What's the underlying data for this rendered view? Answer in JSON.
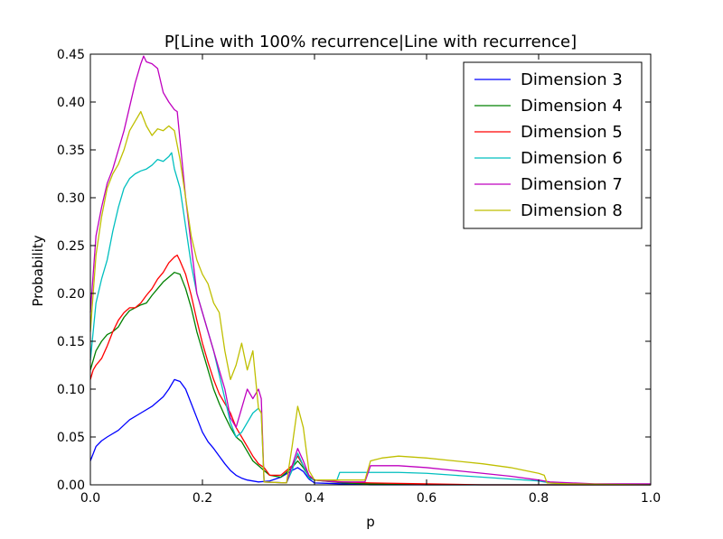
{
  "chart_data": {
    "type": "line",
    "title": "P[Line with 100% recurrence|Line with recurrence]",
    "xlabel": "p",
    "ylabel": "Probability",
    "xlim": [
      0.0,
      1.0
    ],
    "ylim": [
      0.0,
      0.45
    ],
    "xticks": [
      "0.0",
      "0.2",
      "0.4",
      "0.6",
      "0.8",
      "1.0"
    ],
    "yticks": [
      "0.00",
      "0.05",
      "0.10",
      "0.15",
      "0.20",
      "0.25",
      "0.30",
      "0.35",
      "0.40",
      "0.45"
    ],
    "grid": false,
    "legend_position": "top-right",
    "series": [
      {
        "name": "Dimension 3",
        "color": "#0000ff",
        "points": [
          [
            0.0,
            0.025
          ],
          [
            0.01,
            0.04
          ],
          [
            0.02,
            0.046
          ],
          [
            0.03,
            0.05
          ],
          [
            0.05,
            0.057
          ],
          [
            0.07,
            0.068
          ],
          [
            0.09,
            0.075
          ],
          [
            0.11,
            0.082
          ],
          [
            0.13,
            0.092
          ],
          [
            0.14,
            0.1
          ],
          [
            0.15,
            0.11
          ],
          [
            0.16,
            0.108
          ],
          [
            0.17,
            0.1
          ],
          [
            0.18,
            0.085
          ],
          [
            0.19,
            0.07
          ],
          [
            0.2,
            0.055
          ],
          [
            0.21,
            0.045
          ],
          [
            0.22,
            0.038
          ],
          [
            0.23,
            0.03
          ],
          [
            0.24,
            0.022
          ],
          [
            0.25,
            0.015
          ],
          [
            0.26,
            0.01
          ],
          [
            0.27,
            0.007
          ],
          [
            0.28,
            0.005
          ],
          [
            0.3,
            0.003
          ],
          [
            0.32,
            0.004
          ],
          [
            0.34,
            0.008
          ],
          [
            0.36,
            0.015
          ],
          [
            0.37,
            0.018
          ],
          [
            0.38,
            0.014
          ],
          [
            0.39,
            0.006
          ],
          [
            0.4,
            0.002
          ],
          [
            0.45,
            0.001
          ],
          [
            0.5,
            0.0
          ],
          [
            0.6,
            0.0
          ],
          [
            0.7,
            0.0
          ],
          [
            0.8,
            0.0
          ],
          [
            0.9,
            0.0
          ],
          [
            1.0,
            0.0
          ]
        ]
      },
      {
        "name": "Dimension 4",
        "color": "#008000",
        "points": [
          [
            0.0,
            0.12
          ],
          [
            0.005,
            0.13
          ],
          [
            0.01,
            0.14
          ],
          [
            0.02,
            0.15
          ],
          [
            0.03,
            0.157
          ],
          [
            0.04,
            0.16
          ],
          [
            0.05,
            0.165
          ],
          [
            0.06,
            0.175
          ],
          [
            0.07,
            0.182
          ],
          [
            0.08,
            0.185
          ],
          [
            0.09,
            0.188
          ],
          [
            0.1,
            0.19
          ],
          [
            0.11,
            0.198
          ],
          [
            0.12,
            0.205
          ],
          [
            0.13,
            0.212
          ],
          [
            0.14,
            0.217
          ],
          [
            0.15,
            0.222
          ],
          [
            0.16,
            0.22
          ],
          [
            0.17,
            0.205
          ],
          [
            0.18,
            0.185
          ],
          [
            0.19,
            0.16
          ],
          [
            0.2,
            0.14
          ],
          [
            0.21,
            0.12
          ],
          [
            0.22,
            0.1
          ],
          [
            0.23,
            0.085
          ],
          [
            0.24,
            0.072
          ],
          [
            0.25,
            0.06
          ],
          [
            0.26,
            0.05
          ],
          [
            0.27,
            0.045
          ],
          [
            0.28,
            0.035
          ],
          [
            0.29,
            0.025
          ],
          [
            0.3,
            0.02
          ],
          [
            0.31,
            0.015
          ],
          [
            0.32,
            0.01
          ],
          [
            0.34,
            0.008
          ],
          [
            0.36,
            0.018
          ],
          [
            0.37,
            0.025
          ],
          [
            0.38,
            0.018
          ],
          [
            0.39,
            0.008
          ],
          [
            0.4,
            0.005
          ],
          [
            0.45,
            0.002
          ],
          [
            0.5,
            0.001
          ],
          [
            0.6,
            0.0
          ],
          [
            0.7,
            0.0
          ],
          [
            0.8,
            0.0
          ],
          [
            1.0,
            0.0
          ]
        ]
      },
      {
        "name": "Dimension 5",
        "color": "#ff0000",
        "points": [
          [
            0.0,
            0.11
          ],
          [
            0.005,
            0.12
          ],
          [
            0.01,
            0.125
          ],
          [
            0.02,
            0.132
          ],
          [
            0.03,
            0.145
          ],
          [
            0.04,
            0.16
          ],
          [
            0.05,
            0.172
          ],
          [
            0.06,
            0.18
          ],
          [
            0.07,
            0.185
          ],
          [
            0.08,
            0.185
          ],
          [
            0.09,
            0.19
          ],
          [
            0.1,
            0.198
          ],
          [
            0.11,
            0.205
          ],
          [
            0.12,
            0.215
          ],
          [
            0.13,
            0.222
          ],
          [
            0.14,
            0.232
          ],
          [
            0.15,
            0.238
          ],
          [
            0.155,
            0.24
          ],
          [
            0.16,
            0.234
          ],
          [
            0.17,
            0.22
          ],
          [
            0.18,
            0.198
          ],
          [
            0.19,
            0.172
          ],
          [
            0.2,
            0.148
          ],
          [
            0.21,
            0.128
          ],
          [
            0.22,
            0.11
          ],
          [
            0.23,
            0.095
          ],
          [
            0.24,
            0.085
          ],
          [
            0.25,
            0.075
          ],
          [
            0.26,
            0.06
          ],
          [
            0.27,
            0.05
          ],
          [
            0.28,
            0.04
          ],
          [
            0.29,
            0.03
          ],
          [
            0.3,
            0.022
          ],
          [
            0.31,
            0.018
          ],
          [
            0.32,
            0.01
          ],
          [
            0.34,
            0.01
          ],
          [
            0.36,
            0.02
          ],
          [
            0.37,
            0.03
          ],
          [
            0.38,
            0.02
          ],
          [
            0.39,
            0.01
          ],
          [
            0.4,
            0.005
          ],
          [
            0.45,
            0.003
          ],
          [
            0.5,
            0.002
          ],
          [
            0.6,
            0.001
          ],
          [
            0.7,
            0.0
          ],
          [
            0.8,
            0.0
          ],
          [
            1.0,
            0.0
          ]
        ]
      },
      {
        "name": "Dimension 6",
        "color": "#00bfbf",
        "points": [
          [
            0.0,
            0.13
          ],
          [
            0.005,
            0.16
          ],
          [
            0.01,
            0.19
          ],
          [
            0.02,
            0.215
          ],
          [
            0.03,
            0.235
          ],
          [
            0.04,
            0.265
          ],
          [
            0.05,
            0.29
          ],
          [
            0.06,
            0.31
          ],
          [
            0.07,
            0.32
          ],
          [
            0.08,
            0.325
          ],
          [
            0.09,
            0.328
          ],
          [
            0.1,
            0.33
          ],
          [
            0.11,
            0.334
          ],
          [
            0.12,
            0.34
          ],
          [
            0.13,
            0.338
          ],
          [
            0.14,
            0.343
          ],
          [
            0.145,
            0.347
          ],
          [
            0.15,
            0.33
          ],
          [
            0.16,
            0.31
          ],
          [
            0.17,
            0.27
          ],
          [
            0.18,
            0.23
          ],
          [
            0.19,
            0.2
          ],
          [
            0.2,
            0.18
          ],
          [
            0.21,
            0.16
          ],
          [
            0.22,
            0.14
          ],
          [
            0.23,
            0.115
          ],
          [
            0.24,
            0.09
          ],
          [
            0.25,
            0.065
          ],
          [
            0.26,
            0.05
          ],
          [
            0.27,
            0.055
          ],
          [
            0.28,
            0.065
          ],
          [
            0.29,
            0.075
          ],
          [
            0.3,
            0.08
          ],
          [
            0.305,
            0.075
          ],
          [
            0.31,
            0.003
          ],
          [
            0.35,
            0.002
          ],
          [
            0.36,
            0.015
          ],
          [
            0.37,
            0.033
          ],
          [
            0.38,
            0.02
          ],
          [
            0.39,
            0.007
          ],
          [
            0.4,
            0.005
          ],
          [
            0.44,
            0.005
          ],
          [
            0.445,
            0.013
          ],
          [
            0.5,
            0.013
          ],
          [
            0.55,
            0.013
          ],
          [
            0.6,
            0.012
          ],
          [
            0.65,
            0.01
          ],
          [
            0.7,
            0.008
          ],
          [
            0.75,
            0.006
          ],
          [
            0.8,
            0.004
          ],
          [
            0.82,
            0.002
          ],
          [
            0.85,
            0.001
          ],
          [
            1.0,
            0.0
          ]
        ]
      },
      {
        "name": "Dimension 7",
        "color": "#bf00bf",
        "points": [
          [
            0.0,
            0.18
          ],
          [
            0.005,
            0.22
          ],
          [
            0.01,
            0.26
          ],
          [
            0.02,
            0.29
          ],
          [
            0.03,
            0.315
          ],
          [
            0.04,
            0.33
          ],
          [
            0.05,
            0.35
          ],
          [
            0.06,
            0.37
          ],
          [
            0.07,
            0.395
          ],
          [
            0.08,
            0.42
          ],
          [
            0.09,
            0.44
          ],
          [
            0.095,
            0.448
          ],
          [
            0.1,
            0.442
          ],
          [
            0.11,
            0.44
          ],
          [
            0.12,
            0.435
          ],
          [
            0.13,
            0.41
          ],
          [
            0.14,
            0.4
          ],
          [
            0.15,
            0.392
          ],
          [
            0.155,
            0.39
          ],
          [
            0.16,
            0.36
          ],
          [
            0.17,
            0.3
          ],
          [
            0.18,
            0.25
          ],
          [
            0.19,
            0.2
          ],
          [
            0.2,
            0.18
          ],
          [
            0.21,
            0.16
          ],
          [
            0.22,
            0.14
          ],
          [
            0.23,
            0.12
          ],
          [
            0.24,
            0.1
          ],
          [
            0.25,
            0.07
          ],
          [
            0.26,
            0.06
          ],
          [
            0.27,
            0.08
          ],
          [
            0.28,
            0.1
          ],
          [
            0.29,
            0.09
          ],
          [
            0.3,
            0.1
          ],
          [
            0.305,
            0.09
          ],
          [
            0.31,
            0.003
          ],
          [
            0.35,
            0.002
          ],
          [
            0.36,
            0.02
          ],
          [
            0.37,
            0.038
          ],
          [
            0.38,
            0.025
          ],
          [
            0.39,
            0.01
          ],
          [
            0.4,
            0.005
          ],
          [
            0.44,
            0.003
          ],
          [
            0.49,
            0.003
          ],
          [
            0.5,
            0.02
          ],
          [
            0.55,
            0.02
          ],
          [
            0.6,
            0.018
          ],
          [
            0.65,
            0.015
          ],
          [
            0.7,
            0.012
          ],
          [
            0.75,
            0.009
          ],
          [
            0.8,
            0.005
          ],
          [
            0.82,
            0.003
          ],
          [
            0.9,
            0.001
          ],
          [
            1.0,
            0.001
          ]
        ]
      },
      {
        "name": "Dimension 8",
        "color": "#bfbf00",
        "points": [
          [
            0.0,
            0.16
          ],
          [
            0.005,
            0.2
          ],
          [
            0.01,
            0.24
          ],
          [
            0.02,
            0.28
          ],
          [
            0.03,
            0.31
          ],
          [
            0.04,
            0.325
          ],
          [
            0.05,
            0.335
          ],
          [
            0.06,
            0.35
          ],
          [
            0.07,
            0.37
          ],
          [
            0.08,
            0.38
          ],
          [
            0.09,
            0.39
          ],
          [
            0.1,
            0.375
          ],
          [
            0.11,
            0.365
          ],
          [
            0.12,
            0.372
          ],
          [
            0.13,
            0.37
          ],
          [
            0.14,
            0.375
          ],
          [
            0.15,
            0.37
          ],
          [
            0.16,
            0.34
          ],
          [
            0.17,
            0.3
          ],
          [
            0.18,
            0.26
          ],
          [
            0.19,
            0.235
          ],
          [
            0.2,
            0.22
          ],
          [
            0.21,
            0.21
          ],
          [
            0.22,
            0.19
          ],
          [
            0.23,
            0.18
          ],
          [
            0.24,
            0.14
          ],
          [
            0.25,
            0.11
          ],
          [
            0.26,
            0.125
          ],
          [
            0.27,
            0.148
          ],
          [
            0.28,
            0.12
          ],
          [
            0.29,
            0.14
          ],
          [
            0.3,
            0.08
          ],
          [
            0.305,
            0.075
          ],
          [
            0.31,
            0.003
          ],
          [
            0.35,
            0.002
          ],
          [
            0.36,
            0.04
          ],
          [
            0.37,
            0.082
          ],
          [
            0.38,
            0.06
          ],
          [
            0.39,
            0.015
          ],
          [
            0.4,
            0.005
          ],
          [
            0.49,
            0.005
          ],
          [
            0.5,
            0.025
          ],
          [
            0.52,
            0.028
          ],
          [
            0.55,
            0.03
          ],
          [
            0.6,
            0.028
          ],
          [
            0.65,
            0.025
          ],
          [
            0.7,
            0.022
          ],
          [
            0.75,
            0.018
          ],
          [
            0.8,
            0.012
          ],
          [
            0.81,
            0.01
          ],
          [
            0.815,
            0.002
          ],
          [
            0.85,
            0.001
          ],
          [
            1.0,
            0.0
          ]
        ]
      }
    ]
  }
}
